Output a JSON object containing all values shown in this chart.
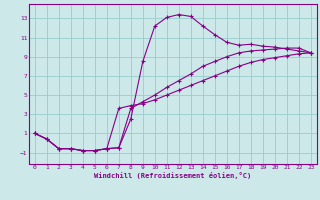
{
  "bg_color": "#cce8e8",
  "grid_color": "#99cccc",
  "line_color": "#880088",
  "xlabel": "Windchill (Refroidissement éolien,°C)",
  "xlim": [
    -0.5,
    23.5
  ],
  "ylim": [
    -2.2,
    14.5
  ],
  "xticks": [
    0,
    1,
    2,
    3,
    4,
    5,
    6,
    7,
    8,
    9,
    10,
    11,
    12,
    13,
    14,
    15,
    16,
    17,
    18,
    19,
    20,
    21,
    22,
    23
  ],
  "yticks": [
    -1,
    1,
    3,
    5,
    7,
    9,
    11,
    13
  ],
  "line1_x": [
    0,
    1,
    2,
    3,
    4,
    5,
    6,
    7,
    8,
    9,
    10,
    11,
    12,
    13,
    14,
    15,
    16,
    17,
    18,
    19,
    20,
    21,
    22,
    23
  ],
  "line1_y": [
    1.0,
    0.4,
    -0.6,
    -0.6,
    -0.8,
    -0.8,
    -0.6,
    -0.5,
    2.5,
    8.5,
    12.2,
    13.1,
    13.4,
    13.2,
    12.2,
    11.3,
    10.5,
    10.2,
    10.3,
    10.1,
    10.0,
    9.8,
    9.6,
    9.4
  ],
  "line2_x": [
    0,
    1,
    2,
    3,
    4,
    5,
    6,
    7,
    8,
    9,
    10,
    11,
    12,
    13,
    14,
    15,
    16,
    17,
    18,
    19,
    20,
    21,
    22,
    23
  ],
  "line2_y": [
    1.0,
    0.4,
    -0.6,
    -0.6,
    -0.8,
    -0.8,
    -0.6,
    3.6,
    3.9,
    4.1,
    4.5,
    5.0,
    5.5,
    6.0,
    6.5,
    7.0,
    7.5,
    8.0,
    8.4,
    8.7,
    8.9,
    9.1,
    9.3,
    9.4
  ],
  "line3_x": [
    0,
    1,
    2,
    3,
    4,
    5,
    6,
    7,
    8,
    9,
    10,
    11,
    12,
    13,
    14,
    15,
    16,
    17,
    18,
    19,
    20,
    21,
    22,
    23
  ],
  "line3_y": [
    1.0,
    0.4,
    -0.6,
    -0.6,
    -0.8,
    -0.8,
    -0.6,
    -0.5,
    3.6,
    4.3,
    5.0,
    5.8,
    6.5,
    7.2,
    8.0,
    8.5,
    9.0,
    9.4,
    9.6,
    9.7,
    9.8,
    9.9,
    9.9,
    9.4
  ]
}
